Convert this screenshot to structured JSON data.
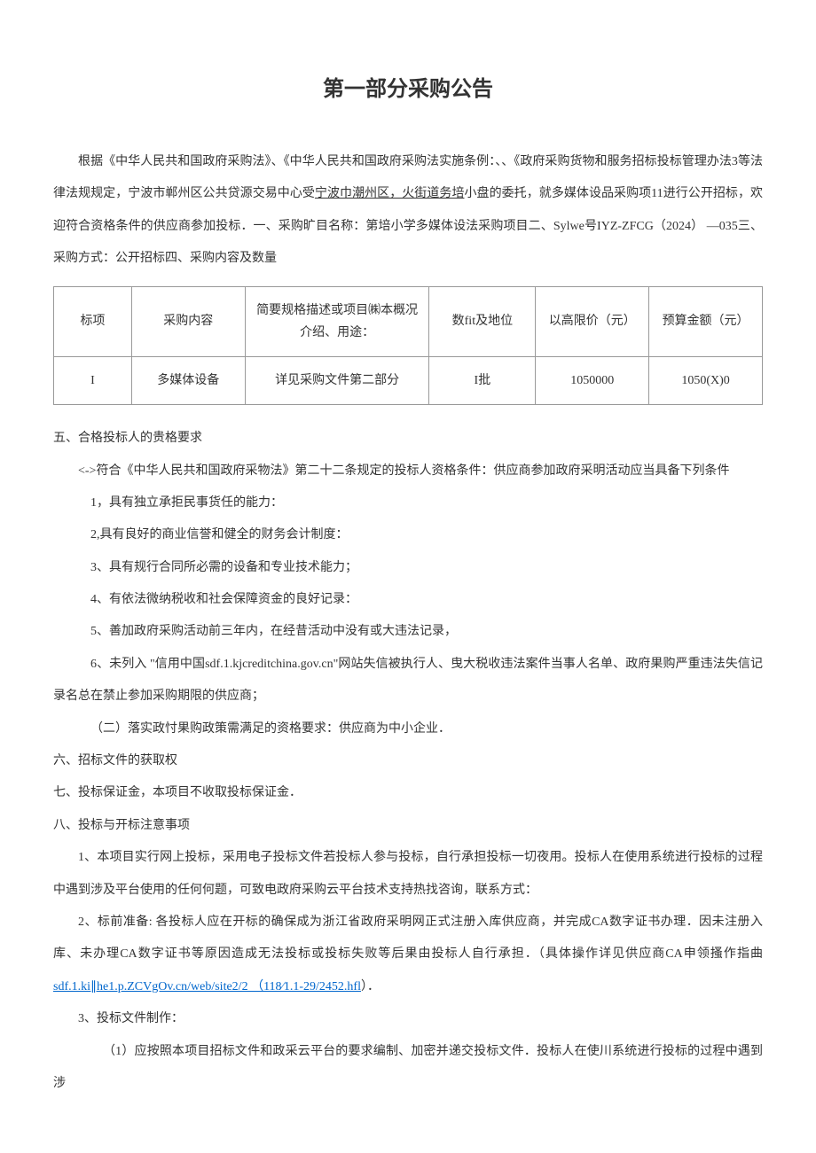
{
  "title": "第一部分采购公告",
  "intro": {
    "p1a": "根据《中华人民共和国政府采购法》、《中华人民共和国政府采购法实施条例：、、《政府采购货物和服务招标投标管理办法3等法律法规规定，宁波市郸州区公共贷源交易中心受",
    "p1u": "宁波巾潮州区，火街道务培",
    "p1b": "小盘的委托，就多媒体设品采购项11进行公开招标，欢迎符合资格条件的供应商参加投标．一、采购旷目名称：第培小学多媒体设法采购项目二、Sylwe号IYZ-ZFCG（2024） —035三、采购方式：公开招标四、采购内容及数量"
  },
  "table": {
    "headers": [
      "标项",
      "采购内容",
      "简要规格描述或项目㈱本概况介绍、用途：",
      "数fit及地位",
      "以高限价（元）",
      "预算金额（元）"
    ],
    "rows": [
      [
        "I",
        "多媒体设备",
        "详见采购文件第二部分",
        "I批",
        "1050000",
        "1050(X)0"
      ]
    ],
    "col_widths": [
      "11%",
      "16%",
      "26%",
      "15%",
      "16%",
      "16%"
    ],
    "border_color": "#999999"
  },
  "section5": {
    "heading": "五、合格投标人的贵格要求",
    "sub1": "<->符合《中华人民共和国政府采物法》第二十二条规定的投标人资格条件：供应商参加政府采明活动应当具备下列条件",
    "items": [
      "1，具有独立承拒民事货任的能力：",
      "2,具有良好的商业信誉和健全的财务会计制度：",
      "3、具有规行合同所必需的设备和专业技术能力；",
      "4、有依法微纳税收和社会保障资金的良好记录：",
      "5、善加政府采购活动前三年内，在经昔活动中没有或大违法记录，",
      "6、未列入 \"信用中国sdf.1.kjcreditchina.gov.cn\"网站失信被执行人、曳大税收违法案件当事人名单、政府果购严重违法失信记录名总在禁止参加采购期限的供应商；"
    ],
    "sub2": "（二）落实政忖果购政策需满足的资格要求：供应商为中小企业．"
  },
  "section6": "六、招标文件的获取权",
  "section7": "七、投标保证金，本项目不收取投标保证金．",
  "section8": {
    "heading": "八、投标与开标注意事项",
    "item1": "1、本项目实行网上投标，采用电子投标文件若投标人参与投标，自行承担投标一切夜用。投标人在使用系统进行投标的过程中遇到涉及平台使用的任何何题，可致电政府采购云平台技术支持热找咨询，联系方式：",
    "item2a": "2、标前准备: 各投标人应在开标的确保成为浙江省政府采明网正式注册入库供应商，并完成CA数字证书办理．因未注册入库、未办理CA数字证书等原因造成无法投标或投标失败等后果由投标人自行承担．（具体操作详见供应商CA申领搔作指曲",
    "item2link": "sdf.1.ki∥he1.p.ZCVgOv.cn/web/site2/2 （118∕1.1-29/2452.hfl",
    "item2b": "）．",
    "item3": "3、投标文件制作：",
    "item3_1": "（1）应按照本项目招标文件和政采云平台的要求编制、加密并递交投标文件．投标人在使川系统进行投标的过程中遇到涉"
  }
}
